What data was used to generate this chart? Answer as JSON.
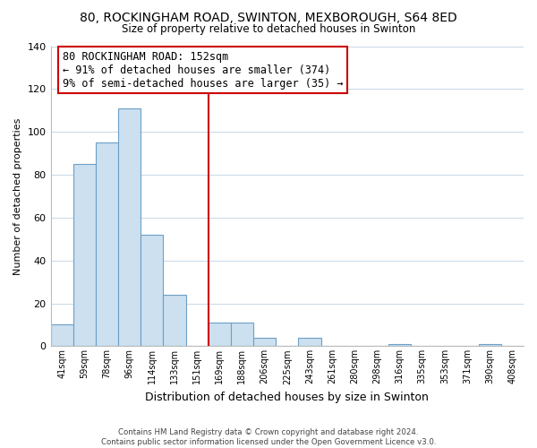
{
  "title": "80, ROCKINGHAM ROAD, SWINTON, MEXBOROUGH, S64 8ED",
  "subtitle": "Size of property relative to detached houses in Swinton",
  "xlabel": "Distribution of detached houses by size in Swinton",
  "ylabel": "Number of detached properties",
  "bar_color": "#cce0f0",
  "bar_edge_color": "#6ca0c8",
  "categories": [
    "41sqm",
    "59sqm",
    "78sqm",
    "96sqm",
    "114sqm",
    "133sqm",
    "151sqm",
    "169sqm",
    "188sqm",
    "206sqm",
    "225sqm",
    "243sqm",
    "261sqm",
    "280sqm",
    "298sqm",
    "316sqm",
    "335sqm",
    "353sqm",
    "371sqm",
    "390sqm",
    "408sqm"
  ],
  "values": [
    10,
    85,
    95,
    111,
    52,
    24,
    0,
    11,
    11,
    4,
    0,
    4,
    0,
    0,
    0,
    1,
    0,
    0,
    0,
    1,
    0
  ],
  "ylim": [
    0,
    140
  ],
  "yticks": [
    0,
    20,
    40,
    60,
    80,
    100,
    120,
    140
  ],
  "vline_color": "#cc0000",
  "annotation_text": "80 ROCKINGHAM ROAD: 152sqm\n← 91% of detached houses are smaller (374)\n9% of semi-detached houses are larger (35) →",
  "annotation_box_color": "#ffffff",
  "annotation_box_edge": "#cc0000",
  "footer_line1": "Contains HM Land Registry data © Crown copyright and database right 2024.",
  "footer_line2": "Contains public sector information licensed under the Open Government Licence v3.0.",
  "background_color": "#ffffff",
  "grid_color": "#c8d8e8"
}
